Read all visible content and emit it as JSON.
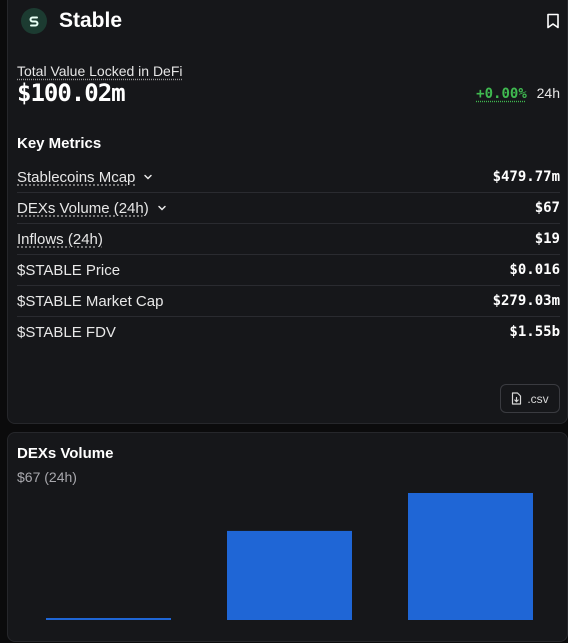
{
  "header": {
    "title": "Stable",
    "logo_icon": "stable-logo-icon",
    "bookmark_icon": "bookmark-icon"
  },
  "tvl": {
    "label": "Total Value Locked in DeFi",
    "value": "$100.02m",
    "change": "+0.00%",
    "period": "24h"
  },
  "key_metrics": {
    "title": "Key Metrics",
    "rows": [
      {
        "label": "Stablecoins Mcap",
        "value": "$479.77m",
        "expandable": true
      },
      {
        "label": "DEXs Volume (24h)",
        "value": "$67",
        "expandable": true
      },
      {
        "label": "Inflows (24h)",
        "value": "$19",
        "expandable": false
      },
      {
        "label": "$STABLE Price",
        "value": "$0.016",
        "expandable": false
      },
      {
        "label": "$STABLE Market Cap",
        "value": "$279.03m",
        "expandable": false
      },
      {
        "label": "$STABLE FDV",
        "value": "$1.55b",
        "expandable": false
      }
    ],
    "csv_button": ".csv"
  },
  "dex_volume": {
    "title": "DEXs Volume",
    "subtitle": "$67 (24h)"
  },
  "colors": {
    "accent_green": "#3fb950",
    "bar_blue": "#1f66d6",
    "card_bg": "#16171a"
  },
  "chart_data": {
    "type": "bar",
    "categories": [
      "",
      "",
      ""
    ],
    "values": [
      1,
      47,
      67
    ],
    "ylim": [
      0,
      67
    ],
    "grid": false,
    "legend": "none"
  }
}
